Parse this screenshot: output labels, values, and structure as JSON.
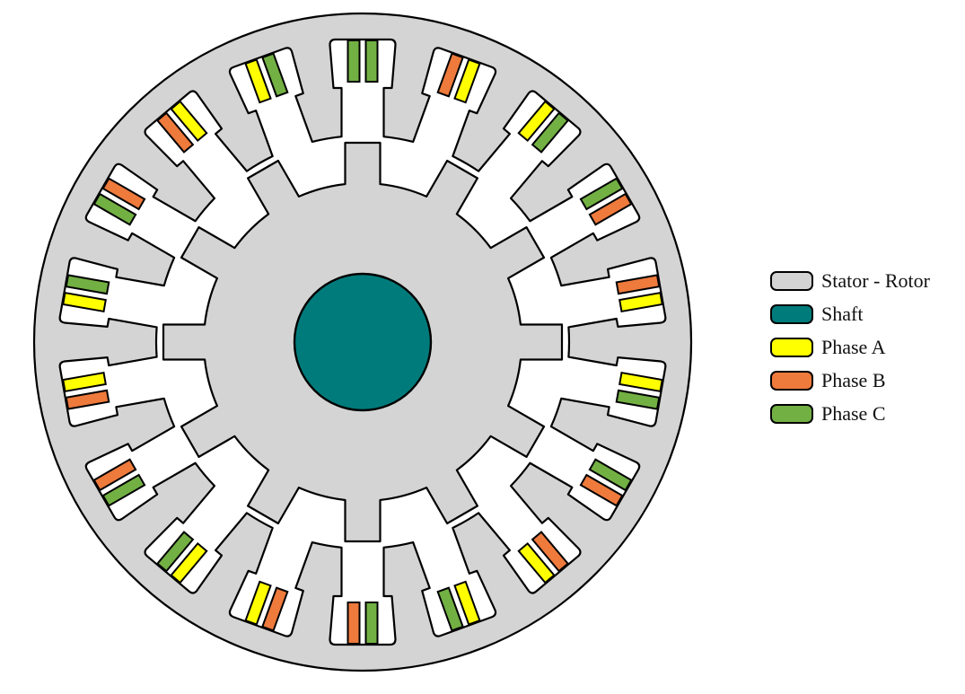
{
  "diagram": {
    "stator_slots": 18,
    "rotor_poles": 12,
    "slot_phases": [
      [
        "C",
        "C"
      ],
      [
        "B",
        "A"
      ],
      [
        "A",
        "C"
      ],
      [
        "C",
        "B"
      ],
      [
        "B",
        "A"
      ],
      [
        "A",
        "C"
      ],
      [
        "C",
        "B"
      ],
      [
        "B",
        "A"
      ],
      [
        "A",
        "C"
      ],
      [
        "C",
        "B"
      ],
      [
        "B",
        "A"
      ],
      [
        "A",
        "C"
      ],
      [
        "C",
        "B"
      ],
      [
        "B",
        "A"
      ],
      [
        "A",
        "C"
      ],
      [
        "C",
        "B"
      ],
      [
        "B",
        "A"
      ],
      [
        "A",
        "C"
      ]
    ]
  },
  "colors": {
    "stator_rotor": "#d4d4d4",
    "shaft": "#007b7b",
    "phase_a": "#ffff00",
    "phase_b": "#ee7a3c",
    "phase_c": "#72b043"
  },
  "legend": [
    {
      "label": "Stator - Rotor",
      "color": "#d4d4d4"
    },
    {
      "label": "Shaft",
      "color": "#007b7b"
    },
    {
      "label": "Phase A",
      "color": "#ffff00"
    },
    {
      "label": "Phase B",
      "color": "#ee7a3c"
    },
    {
      "label": "Phase C",
      "color": "#72b043"
    }
  ]
}
